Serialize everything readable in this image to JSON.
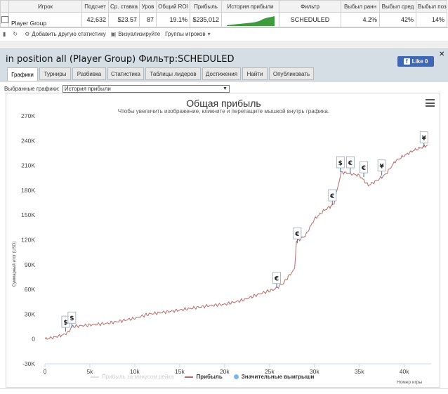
{
  "stats_table": {
    "headers": [
      "",
      "Игрок",
      "Подсчет",
      "Ср. ставка",
      "Уров",
      "Общий ROI",
      "Прибыль",
      "История прибыли",
      "Фильтр",
      "Выбыл ранн",
      "Выбыл сред",
      "Выбыл поз"
    ],
    "row": {
      "player": "Player Group",
      "count": "42,632",
      "avg_stake": "$23.57",
      "level": "87",
      "roi": "19.1%",
      "profit": "$235,012",
      "filter": "SCHEDULED",
      "out_early": "4.2%",
      "out_mid": "42%",
      "out_late": "14%"
    }
  },
  "toolbar": {
    "add_stat": "Добавить другую статистику",
    "visualize": "Визуализируйте",
    "player_groups": "Группы игроков"
  },
  "header": {
    "title": "in position all (Player Group) Фильтр:SCHEDULED",
    "like_label": "Like 0"
  },
  "tabs": [
    {
      "label": "Графики"
    },
    {
      "label": "Турниры"
    },
    {
      "label": "Разбивка"
    },
    {
      "label": "Статистика"
    },
    {
      "label": "Таблицы лидеров"
    },
    {
      "label": "Достижения"
    },
    {
      "label": "Найти"
    },
    {
      "label": "Опубликовать"
    }
  ],
  "selector": {
    "label": "Выбранные графики:",
    "value": "История прибыли"
  },
  "colors": {
    "profit_line": "#b56a6a",
    "marker_line": "#3a6ea5",
    "legend_dot": "#7cb5ec",
    "header_bg": "#d4dee4",
    "fb_blue": "#4267b2"
  },
  "chart_data": {
    "type": "line",
    "title": "Общая прибыль",
    "subtitle": "Чтобы увеличить изображение, кликните и перетащите мышкой внутрь графика.",
    "ylabel": "Суммарный итог (USD)",
    "xlabel": "Номер игры",
    "xlim": [
      0,
      43000
    ],
    "ylim": [
      -30000,
      270000
    ],
    "x_ticks": [
      "0",
      "5k",
      "10k",
      "15k",
      "20k",
      "25k",
      "30k",
      "35k",
      "40k"
    ],
    "y_ticks": [
      "-30K",
      "0",
      "30K",
      "60K",
      "90K",
      "120K",
      "150K",
      "180K",
      "210K",
      "240K",
      "270K"
    ],
    "grid": false,
    "series": [
      {
        "name": "Прибыль",
        "x": [
          0,
          1000,
          2000,
          2600,
          3000,
          5000,
          7000,
          10000,
          11500,
          15000,
          18000,
          20000,
          22000,
          24000,
          25500,
          26500,
          27800,
          28000,
          29000,
          30000,
          31000,
          32000,
          32200,
          33000,
          34000,
          35000,
          36000,
          37000,
          38000,
          39000,
          40000,
          41000,
          42000,
          42600
        ],
        "values": [
          0,
          2000,
          5000,
          8000,
          15000,
          17000,
          19000,
          25000,
          30000,
          35000,
          40000,
          42000,
          47000,
          55000,
          60000,
          67000,
          85000,
          118000,
          125000,
          145000,
          155000,
          162000,
          165000,
          202000,
          200000,
          198000,
          186000,
          192000,
          200000,
          215000,
          222000,
          228000,
          232000,
          235000
        ]
      }
    ],
    "markers": [
      {
        "x": 2300,
        "y": 9000,
        "symbol": "$"
      },
      {
        "x": 3000,
        "y": 14000,
        "symbol": "$"
      },
      {
        "x": 25800,
        "y": 62000,
        "symbol": "€"
      },
      {
        "x": 28100,
        "y": 116000,
        "symbol": "€"
      },
      {
        "x": 32000,
        "y": 162000,
        "symbol": "€"
      },
      {
        "x": 32900,
        "y": 202000,
        "symbol": "$"
      },
      {
        "x": 34000,
        "y": 202000,
        "symbol": "€"
      },
      {
        "x": 35500,
        "y": 196000,
        "symbol": "€"
      },
      {
        "x": 37500,
        "y": 198000,
        "symbol": "¥"
      },
      {
        "x": 42200,
        "y": 232000,
        "symbol": "¥"
      }
    ],
    "legend": {
      "placement": "bottom",
      "items": [
        {
          "label": "Прибыль за минусом рейка",
          "state": "disabled"
        },
        {
          "label": "Прибыль",
          "state": "enabled"
        },
        {
          "label": "Значительные выигрыши",
          "state": "enabled"
        }
      ]
    }
  }
}
